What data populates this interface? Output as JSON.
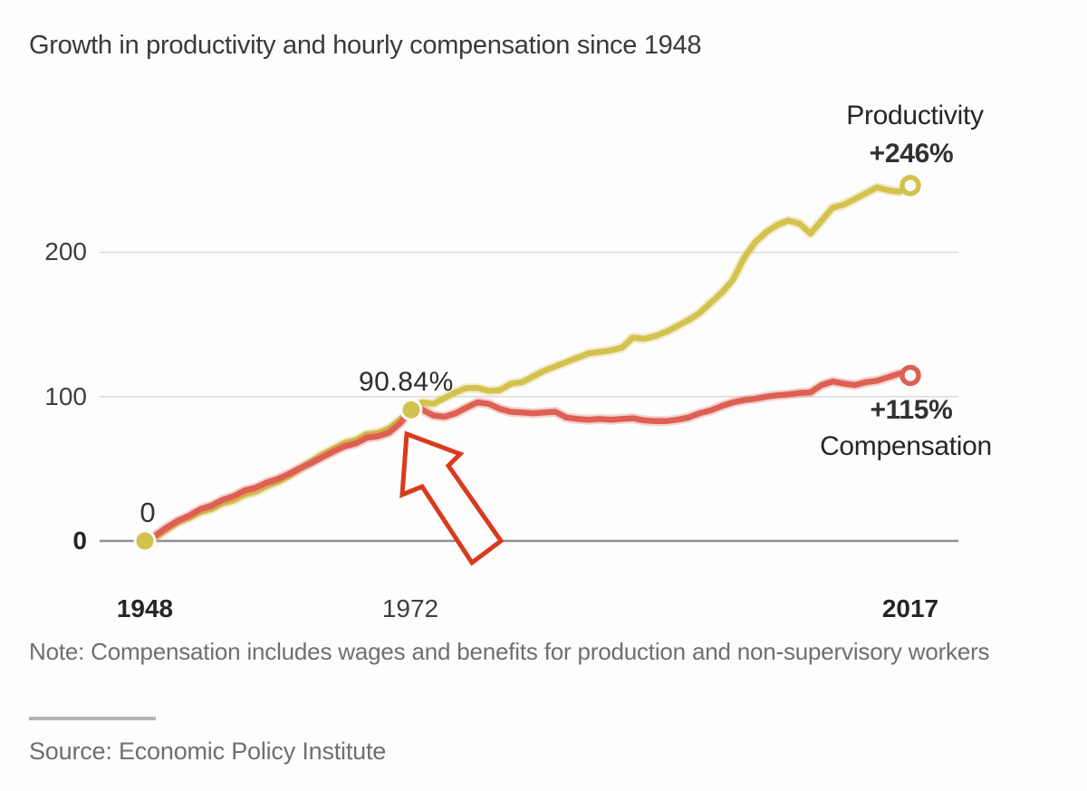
{
  "title": "Growth in productivity and hourly compensation since 1948",
  "note": "Note: Compensation includes wages and benefits for production and non-supervisory workers",
  "source": "Source: Economic Policy Institute",
  "colors": {
    "background": "#fdfdfd",
    "productivity_line": "#d3c24e",
    "compensation_line": "#dd6054",
    "arrow": "#d93a1d",
    "gridline": "#dcdcdc",
    "baseline": "#8f8f8f",
    "title_text": "#3a3a3a",
    "muted_text": "#6f6f6f"
  },
  "chart_data": {
    "type": "line",
    "title": "Growth in productivity and hourly compensation since 1948",
    "xlabel": "",
    "ylabel": "",
    "xlim": [
      1948,
      2017
    ],
    "ylim": [
      0,
      260
    ],
    "grid": "horizontal",
    "legend_position": "end-of-line labels",
    "yticks": [
      {
        "value": 0,
        "label": "0",
        "bold": true
      },
      {
        "value": 100,
        "label": "100",
        "bold": false
      },
      {
        "value": 200,
        "label": "200",
        "bold": false
      }
    ],
    "xticks": [
      {
        "value": 1948,
        "label": "1948",
        "bold": true
      },
      {
        "value": 1972,
        "label": "1972",
        "bold": false
      },
      {
        "value": 2017,
        "label": "2017",
        "bold": true
      }
    ],
    "years": [
      1948,
      1949,
      1950,
      1951,
      1952,
      1953,
      1954,
      1955,
      1956,
      1957,
      1958,
      1959,
      1960,
      1961,
      1962,
      1963,
      1964,
      1965,
      1966,
      1967,
      1968,
      1969,
      1970,
      1971,
      1972,
      1973,
      1974,
      1975,
      1976,
      1977,
      1978,
      1979,
      1980,
      1981,
      1982,
      1983,
      1984,
      1985,
      1986,
      1987,
      1988,
      1989,
      1990,
      1991,
      1992,
      1993,
      1994,
      1995,
      1996,
      1997,
      1998,
      1999,
      2000,
      2001,
      2002,
      2003,
      2004,
      2005,
      2006,
      2007,
      2008,
      2009,
      2010,
      2011,
      2012,
      2013,
      2014,
      2015,
      2016,
      2017
    ],
    "series": [
      {
        "name": "Productivity",
        "end_label": "+246%",
        "color": "#d3c24e",
        "values": [
          0,
          3,
          8,
          13,
          16,
          20,
          22,
          26,
          28,
          32,
          34,
          38,
          41,
          45,
          50,
          55,
          60,
          64,
          68,
          70,
          74,
          75,
          78,
          84,
          90.84,
          96,
          95,
          99,
          103,
          106,
          106,
          104,
          104.5,
          109,
          110,
          114,
          118,
          121,
          124,
          127,
          130,
          131,
          132,
          134,
          141,
          140,
          142,
          145,
          149,
          153,
          158,
          165,
          172,
          181,
          196,
          207,
          214,
          219,
          222,
          220,
          213,
          222,
          231,
          233,
          237,
          241,
          245,
          243,
          242,
          246.3
        ]
      },
      {
        "name": "Compensation",
        "end_label": "+115%",
        "color": "#dd6054",
        "values": [
          0,
          4,
          9.5,
          14,
          17.5,
          22,
          24.5,
          28.5,
          31,
          35,
          37,
          40.5,
          43,
          46.5,
          50.5,
          54,
          58,
          62,
          65.5,
          67.5,
          71.5,
          72.5,
          75,
          81.5,
          90.84,
          91,
          87,
          86,
          88.5,
          92.5,
          96,
          95,
          91.5,
          89.5,
          89,
          88.5,
          89,
          89.5,
          85.5,
          84.5,
          84,
          84.5,
          84,
          84.5,
          85,
          83.5,
          83,
          83,
          84,
          85.5,
          88.5,
          90.5,
          93.5,
          96,
          97.5,
          98.5,
          100,
          101,
          101.5,
          102.5,
          103,
          108,
          110.5,
          109,
          108,
          110,
          111,
          113.5,
          116,
          114.7
        ]
      }
    ],
    "markers": {
      "start": {
        "year": 1948,
        "value": 0,
        "style": "filled",
        "color": "#d3c24e"
      },
      "midpoint": {
        "year": 1972,
        "value": 90.84,
        "style": "filled",
        "color": "#d3c24e"
      },
      "productivity_end": {
        "year": 2017,
        "value": 246.3,
        "style": "ring",
        "color": "#d3c24e"
      },
      "compensation_end": {
        "year": 2017,
        "value": 114.7,
        "style": "ring",
        "color": "#dd6054"
      }
    },
    "annotations": {
      "origin_point_label": "0",
      "midpoint_label": "90.84%",
      "midpoint_year": 1972,
      "midpoint_value": 90.84,
      "arrow_target": "1972 data point"
    }
  }
}
